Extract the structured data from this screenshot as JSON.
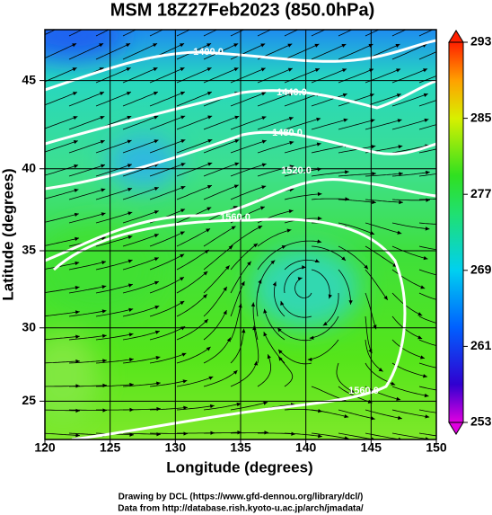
{
  "title": "MSM 18Z27Feb2023 (850.0hPa)",
  "x_axis": {
    "label": "Longitude (degrees)",
    "xlim": [
      120,
      150
    ],
    "xticks": [
      120,
      125,
      130,
      135,
      140,
      145,
      150
    ]
  },
  "y_axis": {
    "label": "Latitude  (degrees)",
    "ylim": [
      22.3,
      47.7
    ],
    "yticks": [
      25,
      30,
      35,
      40,
      45
    ],
    "projection": "mercator"
  },
  "colorbar": {
    "lim": [
      253,
      293
    ],
    "ticks": [
      253,
      261,
      269,
      277,
      285,
      293
    ]
  },
  "contour_labels": [
    "1400.0",
    "1440.0",
    "1480.0",
    "1520.0",
    "1560.0",
    "1560.0"
  ],
  "footer": [
    "Drawing by DCL (https://www.gfd-dennou.org/library/dcl/)",
    "Data from http://database.rish.kyoto-u.ac.jp/arch/jmadata/"
  ]
}
